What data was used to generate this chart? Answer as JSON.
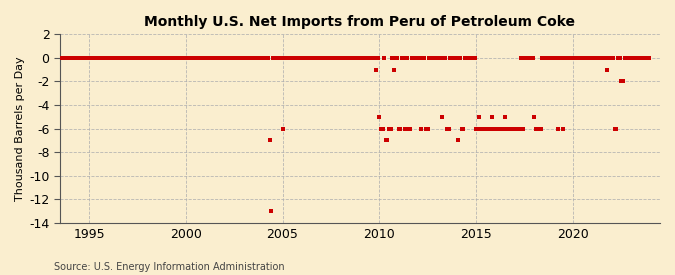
{
  "title": "Monthly U.S. Net Imports from Peru of Petroleum Coke",
  "ylabel": "Thousand Barrels per Day",
  "source": "Source: U.S. Energy Information Administration",
  "xlim": [
    1993.5,
    2024.5
  ],
  "ylim": [
    -14,
    2
  ],
  "yticks": [
    2,
    0,
    -2,
    -4,
    -6,
    -8,
    -10,
    -12,
    -14
  ],
  "xticks": [
    1995,
    2000,
    2005,
    2010,
    2015,
    2020
  ],
  "background_color": "#faeecf",
  "marker_color": "#cc0000",
  "grid_color": "#b0b0b0",
  "data_points": [
    [
      1993.583,
      0
    ],
    [
      1993.667,
      0
    ],
    [
      1993.75,
      0
    ],
    [
      1993.833,
      0
    ],
    [
      1993.917,
      0
    ],
    [
      1994.0,
      0
    ],
    [
      1994.083,
      0
    ],
    [
      1994.167,
      0
    ],
    [
      1994.25,
      0
    ],
    [
      1994.333,
      0
    ],
    [
      1994.417,
      0
    ],
    [
      1994.5,
      0
    ],
    [
      1994.583,
      0
    ],
    [
      1994.667,
      0
    ],
    [
      1994.75,
      0
    ],
    [
      1994.833,
      0
    ],
    [
      1994.917,
      0
    ],
    [
      1995.0,
      0
    ],
    [
      1995.083,
      0
    ],
    [
      1995.167,
      0
    ],
    [
      1995.25,
      0
    ],
    [
      1995.333,
      0
    ],
    [
      1995.417,
      0
    ],
    [
      1995.5,
      0
    ],
    [
      1995.583,
      0
    ],
    [
      1995.667,
      0
    ],
    [
      1995.75,
      0
    ],
    [
      1995.833,
      0
    ],
    [
      1995.917,
      0
    ],
    [
      1996.0,
      0
    ],
    [
      1996.083,
      0
    ],
    [
      1996.167,
      0
    ],
    [
      1996.25,
      0
    ],
    [
      1996.333,
      0
    ],
    [
      1996.417,
      0
    ],
    [
      1996.5,
      0
    ],
    [
      1996.583,
      0
    ],
    [
      1996.667,
      0
    ],
    [
      1996.75,
      0
    ],
    [
      1996.833,
      0
    ],
    [
      1996.917,
      0
    ],
    [
      1997.0,
      0
    ],
    [
      1997.083,
      0
    ],
    [
      1997.167,
      0
    ],
    [
      1997.25,
      0
    ],
    [
      1997.333,
      0
    ],
    [
      1997.417,
      0
    ],
    [
      1997.5,
      0
    ],
    [
      1997.583,
      0
    ],
    [
      1997.667,
      0
    ],
    [
      1997.75,
      0
    ],
    [
      1997.833,
      0
    ],
    [
      1997.917,
      0
    ],
    [
      1998.0,
      0
    ],
    [
      1998.083,
      0
    ],
    [
      1998.167,
      0
    ],
    [
      1998.25,
      0
    ],
    [
      1998.333,
      0
    ],
    [
      1998.417,
      0
    ],
    [
      1998.5,
      0
    ],
    [
      1998.583,
      0
    ],
    [
      1998.667,
      0
    ],
    [
      1998.75,
      0
    ],
    [
      1998.833,
      0
    ],
    [
      1998.917,
      0
    ],
    [
      1999.0,
      0
    ],
    [
      1999.083,
      0
    ],
    [
      1999.167,
      0
    ],
    [
      1999.25,
      0
    ],
    [
      1999.333,
      0
    ],
    [
      1999.417,
      0
    ],
    [
      1999.5,
      0
    ],
    [
      1999.583,
      0
    ],
    [
      1999.667,
      0
    ],
    [
      1999.75,
      0
    ],
    [
      1999.833,
      0
    ],
    [
      1999.917,
      0
    ],
    [
      2000.0,
      0
    ],
    [
      2000.083,
      0
    ],
    [
      2000.167,
      0
    ],
    [
      2000.25,
      0
    ],
    [
      2000.333,
      0
    ],
    [
      2000.417,
      0
    ],
    [
      2000.5,
      0
    ],
    [
      2000.583,
      0
    ],
    [
      2000.667,
      0
    ],
    [
      2000.75,
      0
    ],
    [
      2000.833,
      0
    ],
    [
      2000.917,
      0
    ],
    [
      2001.0,
      0
    ],
    [
      2001.083,
      0
    ],
    [
      2001.167,
      0
    ],
    [
      2001.25,
      0
    ],
    [
      2001.333,
      0
    ],
    [
      2001.417,
      0
    ],
    [
      2001.5,
      0
    ],
    [
      2001.583,
      0
    ],
    [
      2001.667,
      0
    ],
    [
      2001.75,
      0
    ],
    [
      2001.833,
      0
    ],
    [
      2001.917,
      0
    ],
    [
      2002.0,
      0
    ],
    [
      2002.083,
      0
    ],
    [
      2002.167,
      0
    ],
    [
      2002.25,
      0
    ],
    [
      2002.333,
      0
    ],
    [
      2002.417,
      0
    ],
    [
      2002.5,
      0
    ],
    [
      2002.583,
      0
    ],
    [
      2002.667,
      0
    ],
    [
      2002.75,
      0
    ],
    [
      2002.833,
      0
    ],
    [
      2002.917,
      0
    ],
    [
      2003.0,
      0
    ],
    [
      2003.083,
      0
    ],
    [
      2003.167,
      0
    ],
    [
      2003.25,
      0
    ],
    [
      2003.333,
      0
    ],
    [
      2003.417,
      0
    ],
    [
      2003.5,
      0
    ],
    [
      2003.583,
      0
    ],
    [
      2003.667,
      0
    ],
    [
      2003.75,
      0
    ],
    [
      2003.833,
      0
    ],
    [
      2003.917,
      0
    ],
    [
      2004.0,
      0
    ],
    [
      2004.083,
      0
    ],
    [
      2004.167,
      0
    ],
    [
      2004.25,
      0
    ],
    [
      2004.333,
      -7
    ],
    [
      2004.417,
      -13
    ],
    [
      2004.5,
      0
    ],
    [
      2004.583,
      0
    ],
    [
      2004.667,
      0
    ],
    [
      2004.75,
      0
    ],
    [
      2004.833,
      0
    ],
    [
      2004.917,
      0
    ],
    [
      2005.0,
      -6
    ],
    [
      2005.083,
      0
    ],
    [
      2005.167,
      0
    ],
    [
      2005.25,
      0
    ],
    [
      2005.333,
      0
    ],
    [
      2005.417,
      0
    ],
    [
      2005.5,
      0
    ],
    [
      2005.583,
      0
    ],
    [
      2005.667,
      0
    ],
    [
      2005.75,
      0
    ],
    [
      2005.833,
      0
    ],
    [
      2005.917,
      0
    ],
    [
      2006.0,
      0
    ],
    [
      2006.083,
      0
    ],
    [
      2006.167,
      0
    ],
    [
      2006.25,
      0
    ],
    [
      2006.333,
      0
    ],
    [
      2006.417,
      0
    ],
    [
      2006.5,
      0
    ],
    [
      2006.583,
      0
    ],
    [
      2006.667,
      0
    ],
    [
      2006.75,
      0
    ],
    [
      2006.833,
      0
    ],
    [
      2006.917,
      0
    ],
    [
      2007.0,
      0
    ],
    [
      2007.083,
      0
    ],
    [
      2007.167,
      0
    ],
    [
      2007.25,
      0
    ],
    [
      2007.333,
      0
    ],
    [
      2007.417,
      0
    ],
    [
      2007.5,
      0
    ],
    [
      2007.583,
      0
    ],
    [
      2007.667,
      0
    ],
    [
      2007.75,
      0
    ],
    [
      2007.833,
      0
    ],
    [
      2007.917,
      0
    ],
    [
      2008.0,
      0
    ],
    [
      2008.083,
      0
    ],
    [
      2008.167,
      0
    ],
    [
      2008.25,
      0
    ],
    [
      2008.333,
      0
    ],
    [
      2008.417,
      0
    ],
    [
      2008.5,
      0
    ],
    [
      2008.583,
      0
    ],
    [
      2008.667,
      0
    ],
    [
      2008.75,
      0
    ],
    [
      2008.833,
      0
    ],
    [
      2008.917,
      0
    ],
    [
      2009.0,
      0
    ],
    [
      2009.083,
      0
    ],
    [
      2009.167,
      0
    ],
    [
      2009.25,
      0
    ],
    [
      2009.333,
      0
    ],
    [
      2009.417,
      0
    ],
    [
      2009.5,
      0
    ],
    [
      2009.583,
      0
    ],
    [
      2009.667,
      0
    ],
    [
      2009.75,
      0
    ],
    [
      2009.833,
      -1
    ],
    [
      2009.917,
      0
    ],
    [
      2010.0,
      -5
    ],
    [
      2010.083,
      -6
    ],
    [
      2010.167,
      -6
    ],
    [
      2010.25,
      0
    ],
    [
      2010.333,
      -7
    ],
    [
      2010.417,
      -7
    ],
    [
      2010.5,
      -6
    ],
    [
      2010.583,
      -6
    ],
    [
      2010.667,
      0
    ],
    [
      2010.75,
      -1
    ],
    [
      2010.833,
      0
    ],
    [
      2010.917,
      0
    ],
    [
      2011.0,
      -6
    ],
    [
      2011.083,
      -6
    ],
    [
      2011.167,
      0
    ],
    [
      2011.25,
      0
    ],
    [
      2011.333,
      -6
    ],
    [
      2011.417,
      0
    ],
    [
      2011.5,
      -6
    ],
    [
      2011.583,
      -6
    ],
    [
      2011.667,
      0
    ],
    [
      2011.75,
      0
    ],
    [
      2011.833,
      0
    ],
    [
      2011.917,
      0
    ],
    [
      2012.0,
      0
    ],
    [
      2012.083,
      0
    ],
    [
      2012.167,
      -6
    ],
    [
      2012.25,
      0
    ],
    [
      2012.333,
      0
    ],
    [
      2012.417,
      -6
    ],
    [
      2012.5,
      -6
    ],
    [
      2012.583,
      0
    ],
    [
      2012.667,
      0
    ],
    [
      2012.75,
      0
    ],
    [
      2012.833,
      0
    ],
    [
      2012.917,
      0
    ],
    [
      2013.0,
      0
    ],
    [
      2013.083,
      0
    ],
    [
      2013.167,
      0
    ],
    [
      2013.25,
      -5
    ],
    [
      2013.333,
      0
    ],
    [
      2013.417,
      0
    ],
    [
      2013.5,
      -6
    ],
    [
      2013.583,
      -6
    ],
    [
      2013.667,
      0
    ],
    [
      2013.75,
      0
    ],
    [
      2013.833,
      0
    ],
    [
      2013.917,
      0
    ],
    [
      2014.0,
      0
    ],
    [
      2014.083,
      -7
    ],
    [
      2014.167,
      0
    ],
    [
      2014.25,
      -6
    ],
    [
      2014.333,
      -6
    ],
    [
      2014.417,
      0
    ],
    [
      2014.5,
      0
    ],
    [
      2014.583,
      0
    ],
    [
      2014.667,
      0
    ],
    [
      2014.75,
      0
    ],
    [
      2014.833,
      0
    ],
    [
      2014.917,
      0
    ],
    [
      2015.0,
      -6
    ],
    [
      2015.083,
      -6
    ],
    [
      2015.167,
      -5
    ],
    [
      2015.25,
      -6
    ],
    [
      2015.333,
      -6
    ],
    [
      2015.417,
      -6
    ],
    [
      2015.5,
      -6
    ],
    [
      2015.583,
      -6
    ],
    [
      2015.667,
      -6
    ],
    [
      2015.75,
      -6
    ],
    [
      2015.833,
      -5
    ],
    [
      2015.917,
      -6
    ],
    [
      2016.0,
      -6
    ],
    [
      2016.083,
      -6
    ],
    [
      2016.167,
      -6
    ],
    [
      2016.25,
      -6
    ],
    [
      2016.333,
      -6
    ],
    [
      2016.417,
      -6
    ],
    [
      2016.5,
      -5
    ],
    [
      2016.583,
      -6
    ],
    [
      2016.667,
      -6
    ],
    [
      2016.75,
      -6
    ],
    [
      2016.833,
      -6
    ],
    [
      2016.917,
      -6
    ],
    [
      2017.0,
      -6
    ],
    [
      2017.083,
      -6
    ],
    [
      2017.167,
      -6
    ],
    [
      2017.25,
      -6
    ],
    [
      2017.333,
      0
    ],
    [
      2017.417,
      -6
    ],
    [
      2017.5,
      0
    ],
    [
      2017.583,
      0
    ],
    [
      2017.667,
      0
    ],
    [
      2017.75,
      0
    ],
    [
      2017.833,
      0
    ],
    [
      2017.917,
      0
    ],
    [
      2018.0,
      -5
    ],
    [
      2018.083,
      -6
    ],
    [
      2018.167,
      -6
    ],
    [
      2018.25,
      -6
    ],
    [
      2018.333,
      -6
    ],
    [
      2018.417,
      0
    ],
    [
      2018.5,
      0
    ],
    [
      2018.583,
      0
    ],
    [
      2018.667,
      0
    ],
    [
      2018.75,
      0
    ],
    [
      2018.833,
      0
    ],
    [
      2018.917,
      0
    ],
    [
      2019.0,
      0
    ],
    [
      2019.083,
      0
    ],
    [
      2019.167,
      0
    ],
    [
      2019.25,
      -6
    ],
    [
      2019.333,
      0
    ],
    [
      2019.417,
      0
    ],
    [
      2019.5,
      -6
    ],
    [
      2019.583,
      0
    ],
    [
      2019.667,
      0
    ],
    [
      2019.75,
      0
    ],
    [
      2019.833,
      0
    ],
    [
      2019.917,
      0
    ],
    [
      2020.0,
      0
    ],
    [
      2020.083,
      0
    ],
    [
      2020.167,
      0
    ],
    [
      2020.25,
      0
    ],
    [
      2020.333,
      0
    ],
    [
      2020.417,
      0
    ],
    [
      2020.5,
      0
    ],
    [
      2020.583,
      0
    ],
    [
      2020.667,
      0
    ],
    [
      2020.75,
      0
    ],
    [
      2020.833,
      0
    ],
    [
      2020.917,
      0
    ],
    [
      2021.0,
      0
    ],
    [
      2021.083,
      0
    ],
    [
      2021.167,
      0
    ],
    [
      2021.25,
      0
    ],
    [
      2021.333,
      0
    ],
    [
      2021.417,
      0
    ],
    [
      2021.5,
      0
    ],
    [
      2021.583,
      0
    ],
    [
      2021.667,
      0
    ],
    [
      2021.75,
      -1
    ],
    [
      2021.833,
      0
    ],
    [
      2021.917,
      0
    ],
    [
      2022.0,
      0
    ],
    [
      2022.083,
      0
    ],
    [
      2022.167,
      -6
    ],
    [
      2022.25,
      -6
    ],
    [
      2022.333,
      0
    ],
    [
      2022.417,
      0
    ],
    [
      2022.5,
      -2
    ],
    [
      2022.583,
      -2
    ],
    [
      2022.667,
      0
    ],
    [
      2022.75,
      0
    ],
    [
      2022.833,
      0
    ],
    [
      2022.917,
      0
    ],
    [
      2023.0,
      0
    ],
    [
      2023.083,
      0
    ],
    [
      2023.167,
      0
    ],
    [
      2023.25,
      0
    ],
    [
      2023.333,
      0
    ],
    [
      2023.417,
      0
    ],
    [
      2023.5,
      0
    ],
    [
      2023.583,
      0
    ],
    [
      2023.667,
      0
    ],
    [
      2023.75,
      0
    ],
    [
      2023.833,
      0
    ],
    [
      2023.917,
      0
    ]
  ]
}
